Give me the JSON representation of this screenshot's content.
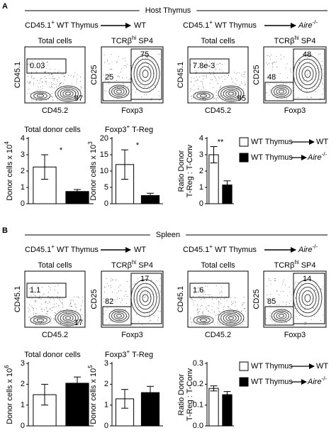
{
  "panels": [
    {
      "label": "A",
      "header": "Host Thymus",
      "groups": [
        {
          "donor": "CD45.1",
          "donor_sup": "+",
          "donor_rest": "WT  Thymus",
          "recipient": "WT"
        },
        {
          "donor": "CD45.1",
          "donor_sup": "+",
          "donor_rest": "WT Thymus",
          "recipient": "Aire",
          "recipient_sup": "-/-"
        }
      ],
      "plots": [
        {
          "title": "Total cells",
          "xlabel": "CD45.2",
          "ylabel": "CD45.1",
          "gates": [
            "0.03",
            "97"
          ]
        },
        {
          "title": "TCRβ",
          "title_sup": "hi",
          "title_rest": "SP4",
          "xlabel": "Foxp3",
          "ylabel": "CD25",
          "gates": [
            "75",
            "25"
          ]
        },
        {
          "title": "Total cells",
          "xlabel": "CD45.2",
          "ylabel": "CD45.1",
          "gates": [
            "7.8e-3",
            "95"
          ]
        },
        {
          "title": "TCRβ",
          "title_sup": "hi",
          "title_rest": "SP4",
          "xlabel": "Foxp3",
          "ylabel": "CD25",
          "gates": [
            "48",
            "48"
          ]
        }
      ],
      "legend": [
        {
          "from": "WT Thymus",
          "to": "WT"
        },
        {
          "from": "WT Thymus",
          "to": "Aire",
          "to_sup": "-/-"
        }
      ]
    },
    {
      "label": "B",
      "header": "Spleen",
      "groups": [
        {
          "donor": "CD45.1",
          "donor_sup": "+",
          "donor_rest": "WT  Thymus",
          "recipient": "WT"
        },
        {
          "donor": "CD45.1",
          "donor_sup": "+",
          "donor_rest": "WT Thymus",
          "recipient": "Aire",
          "recipient_sup": "-/-"
        }
      ],
      "plots": [
        {
          "title": "Total cells",
          "xlabel": "CD45.2",
          "ylabel": "CD45.1",
          "gates": [
            "1.1",
            "17"
          ]
        },
        {
          "title": "TCRβ",
          "title_sup": "hi",
          "title_rest": "SP4",
          "xlabel": "Foxp3",
          "ylabel": "CD25",
          "gates": [
            "17",
            "82"
          ]
        },
        {
          "title": "Total cells",
          "xlabel": "CD45.2",
          "ylabel": "CD45.1",
          "gates": [
            "1.6"
          ]
        },
        {
          "title": "TCRβ",
          "title_sup": "hi",
          "title_rest": "SP4",
          "xlabel": "Foxp3",
          "ylabel": "CD25",
          "gates": [
            "14",
            "85"
          ]
        }
      ],
      "legend": [
        {
          "from": "WT Thymus",
          "to": "WT"
        },
        {
          "from": "WT Thymus",
          "to": "Aire",
          "to_sup": "-/-"
        }
      ]
    }
  ],
  "chart_data": [
    {
      "type": "bar",
      "title": "Total donor cells",
      "ylabel": "Donor cells x 10",
      "ylabel_sup": "4",
      "ylim": [
        0,
        4
      ],
      "yticks": [
        0,
        1,
        2,
        3,
        4
      ],
      "annotation": "*",
      "series": [
        {
          "color": "#ffffff",
          "values": [
            2.25
          ],
          "errors": [
            0.75
          ]
        },
        {
          "color": "#000000",
          "values": [
            0.75
          ],
          "errors": [
            0.12
          ]
        }
      ]
    },
    {
      "type": "bar",
      "title": "Foxp3",
      "title_sup": "+",
      "title_rest": "T-Reg",
      "ylabel": "Donor cells x 10",
      "ylabel_sup": "3",
      "ylim": [
        0,
        20
      ],
      "yticks": [
        0,
        5,
        10,
        15,
        20
      ],
      "annotation": "*",
      "series": [
        {
          "color": "#ffffff",
          "values": [
            12
          ],
          "errors": [
            4.5
          ]
        },
        {
          "color": "#000000",
          "values": [
            2.5
          ],
          "errors": [
            0.7
          ]
        }
      ]
    },
    {
      "type": "bar",
      "ylabel": "Ratio Donor",
      "ylabel2": "T-Reg : T-Conv",
      "ylim": [
        0,
        4
      ],
      "yticks": [
        0,
        1,
        2,
        3,
        4
      ],
      "annotation": "**",
      "series": [
        {
          "color": "#ffffff",
          "values": [
            3.0
          ],
          "errors": [
            0.5
          ]
        },
        {
          "color": "#000000",
          "values": [
            1.15
          ],
          "errors": [
            0.25
          ]
        }
      ]
    },
    {
      "type": "bar",
      "title": "Total donor cells",
      "ylabel": "Donor cells x 10",
      "ylabel_sup": "6",
      "ylim": [
        0,
        3
      ],
      "yticks": [
        0,
        1,
        2,
        3
      ],
      "series": [
        {
          "color": "#ffffff",
          "values": [
            1.5
          ],
          "errors": [
            0.5
          ]
        },
        {
          "color": "#000000",
          "values": [
            2.05
          ],
          "errors": [
            0.3
          ]
        }
      ]
    },
    {
      "type": "bar",
      "title": "Foxp3",
      "title_sup": "+",
      "title_rest": "T-Reg",
      "ylabel": "Donor cells x 10",
      "ylabel_sup": "5",
      "ylim": [
        0,
        3
      ],
      "yticks": [
        0,
        1,
        2,
        3
      ],
      "series": [
        {
          "color": "#ffffff",
          "values": [
            1.3
          ],
          "errors": [
            0.45
          ]
        },
        {
          "color": "#000000",
          "values": [
            1.6
          ],
          "errors": [
            0.3
          ]
        }
      ]
    },
    {
      "type": "bar",
      "ylabel": "Ratio Donor",
      "ylabel2": "T-Reg : T-Conv",
      "ylim": [
        0,
        0.3
      ],
      "yticks": [
        {
          "value": 0,
          "label": "0.0"
        },
        0.1,
        0.2,
        0.3
      ],
      "series": [
        {
          "color": "#ffffff",
          "values": [
            0.18
          ],
          "errors": [
            0.012
          ]
        },
        {
          "color": "#000000",
          "values": [
            0.15
          ],
          "errors": [
            0.015
          ]
        }
      ]
    }
  ]
}
